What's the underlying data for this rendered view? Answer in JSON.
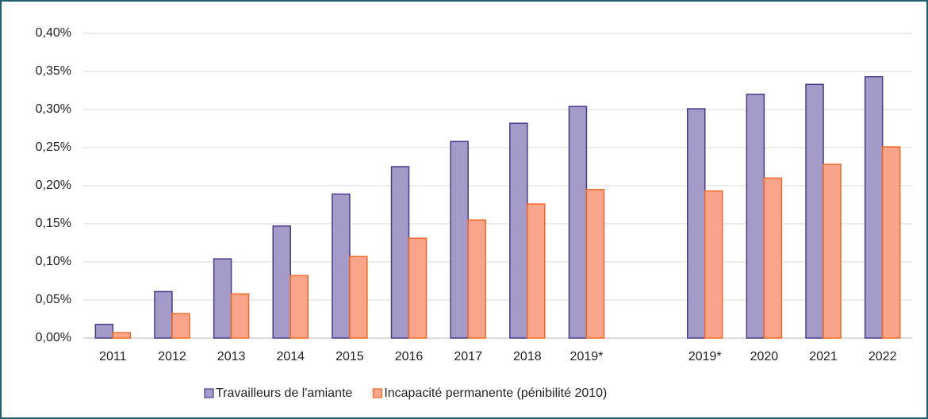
{
  "chart_data": {
    "type": "bar",
    "categories": [
      "2011",
      "2012",
      "2013",
      "2014",
      "2015",
      "2016",
      "2017",
      "2018",
      "2019*",
      null,
      "2019*",
      "2020",
      "2021",
      "2022"
    ],
    "series": [
      {
        "name": "Travailleurs de l'amiante",
        "color": "#a59bc8",
        "stroke": "#4b3a8a",
        "values": [
          0.018,
          0.061,
          0.104,
          0.147,
          0.189,
          0.225,
          0.258,
          0.282,
          0.304,
          null,
          0.301,
          0.32,
          0.333,
          0.343
        ]
      },
      {
        "name": "Incapacité permanente (pénibilité 2010)",
        "color": "#f9a58c",
        "stroke": "#f06a24",
        "values": [
          0.007,
          0.032,
          0.058,
          0.082,
          0.107,
          0.131,
          0.155,
          0.176,
          0.195,
          null,
          0.193,
          0.21,
          0.228,
          0.251
        ]
      }
    ],
    "ylim": [
      0,
      0.4
    ],
    "yticks": [
      {
        "value": 0,
        "label": "0,00%"
      },
      {
        "value": 0.05,
        "label": "0,05%"
      },
      {
        "value": 0.1,
        "label": "0,10%"
      },
      {
        "value": 0.15,
        "label": "0,15%"
      },
      {
        "value": 0.2,
        "label": "0,20%"
      },
      {
        "value": 0.25,
        "label": "0,25%"
      },
      {
        "value": 0.3,
        "label": "0,30%"
      },
      {
        "value": 0.35,
        "label": "0,35%"
      },
      {
        "value": 0.4,
        "label": "0,40%"
      }
    ],
    "grid": true,
    "legend": "bottom"
  }
}
